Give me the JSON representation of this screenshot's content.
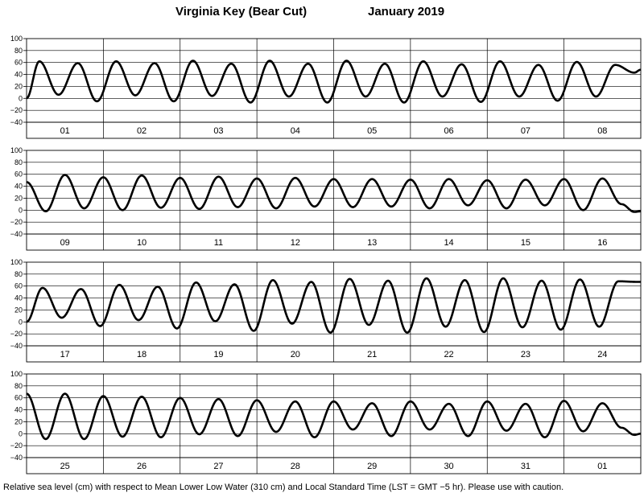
{
  "header": {
    "station": "Virginia Key (Bear Cut)",
    "month": "January   2019"
  },
  "footnote": "Relative sea level (cm) with respect to Mean Lower Low Water (310 cm) and Local Standard Time (LST = GMT −5 hr). Please use with caution.",
  "chart_data": {
    "type": "line",
    "y_axis": {
      "range": [
        -40,
        100
      ],
      "ticks": [
        "100",
        "80",
        "60",
        "40",
        "20",
        "0",
        "−20",
        "−40"
      ],
      "unit": "cm"
    },
    "grid": true,
    "tide_period_hours": 12.42,
    "panels": [
      {
        "days": [
          "01",
          "02",
          "03",
          "04",
          "05",
          "06",
          "07",
          "08"
        ],
        "x_range_hours": [
          0,
          192
        ],
        "points": [
          [
            0,
            0
          ],
          [
            4,
            62
          ],
          [
            10,
            6
          ],
          [
            16,
            59
          ],
          [
            22,
            -5
          ],
          [
            28,
            62
          ],
          [
            34,
            5
          ],
          [
            40,
            59
          ],
          [
            46,
            -5
          ],
          [
            52,
            63
          ],
          [
            58,
            4
          ],
          [
            64,
            58
          ],
          [
            70,
            -7
          ],
          [
            76,
            63
          ],
          [
            82,
            3
          ],
          [
            88,
            58
          ],
          [
            94,
            -7
          ],
          [
            100,
            63
          ],
          [
            106,
            3
          ],
          [
            112,
            58
          ],
          [
            118,
            -7
          ],
          [
            124,
            62
          ],
          [
            130,
            3
          ],
          [
            136,
            57
          ],
          [
            142,
            -6
          ],
          [
            148,
            62
          ],
          [
            154,
            3
          ],
          [
            160,
            56
          ],
          [
            166,
            -4
          ],
          [
            172,
            61
          ],
          [
            178,
            3
          ],
          [
            184,
            56
          ],
          [
            190,
            43
          ],
          [
            192,
            48
          ]
        ]
      },
      {
        "days": [
          "09",
          "10",
          "11",
          "12",
          "13",
          "14",
          "15",
          "16"
        ],
        "x_range_hours": [
          0,
          192
        ],
        "points": [
          [
            0,
            47
          ],
          [
            6,
            -2
          ],
          [
            12,
            59
          ],
          [
            18,
            3
          ],
          [
            24,
            55
          ],
          [
            30,
            0
          ],
          [
            36,
            58
          ],
          [
            42,
            4
          ],
          [
            48,
            54
          ],
          [
            54,
            2
          ],
          [
            60,
            56
          ],
          [
            66,
            5
          ],
          [
            72,
            53
          ],
          [
            78,
            3
          ],
          [
            84,
            54
          ],
          [
            90,
            6
          ],
          [
            96,
            52
          ],
          [
            102,
            5
          ],
          [
            108,
            52
          ],
          [
            114,
            6
          ],
          [
            120,
            51
          ],
          [
            126,
            3
          ],
          [
            132,
            52
          ],
          [
            138,
            8
          ],
          [
            144,
            50
          ],
          [
            150,
            3
          ],
          [
            156,
            51
          ],
          [
            162,
            8
          ],
          [
            168,
            52
          ],
          [
            174,
            0
          ],
          [
            180,
            53
          ],
          [
            186,
            10
          ],
          [
            190,
            -3
          ],
          [
            192,
            -2
          ]
        ]
      },
      {
        "days": [
          "17",
          "18",
          "19",
          "20",
          "21",
          "22",
          "23",
          "24"
        ],
        "x_range_hours": [
          0,
          192
        ],
        "points": [
          [
            0,
            0
          ],
          [
            5,
            57
          ],
          [
            11,
            7
          ],
          [
            17,
            55
          ],
          [
            23,
            -7
          ],
          [
            29,
            62
          ],
          [
            35,
            3
          ],
          [
            41,
            59
          ],
          [
            47,
            -11
          ],
          [
            53,
            66
          ],
          [
            59,
            1
          ],
          [
            65,
            63
          ],
          [
            71,
            -15
          ],
          [
            77,
            70
          ],
          [
            83,
            -3
          ],
          [
            89,
            67
          ],
          [
            95,
            -18
          ],
          [
            101,
            72
          ],
          [
            107,
            -5
          ],
          [
            113,
            69
          ],
          [
            119,
            -18
          ],
          [
            125,
            73
          ],
          [
            131,
            -8
          ],
          [
            137,
            70
          ],
          [
            143,
            -17
          ],
          [
            149,
            73
          ],
          [
            155,
            -9
          ],
          [
            161,
            69
          ],
          [
            167,
            -13
          ],
          [
            173,
            71
          ],
          [
            179,
            -8
          ],
          [
            185,
            68
          ],
          [
            191,
            67
          ],
          [
            192,
            67
          ]
        ]
      },
      {
        "days": [
          "25",
          "26",
          "27",
          "28",
          "29",
          "30",
          "31",
          "01"
        ],
        "x_range_hours": [
          0,
          192
        ],
        "points": [
          [
            0,
            67
          ],
          [
            6,
            -9
          ],
          [
            12,
            67
          ],
          [
            18,
            -9
          ],
          [
            24,
            63
          ],
          [
            30,
            -5
          ],
          [
            36,
            62
          ],
          [
            42,
            -6
          ],
          [
            48,
            60
          ],
          [
            54,
            -1
          ],
          [
            60,
            58
          ],
          [
            66,
            -4
          ],
          [
            72,
            56
          ],
          [
            78,
            3
          ],
          [
            84,
            54
          ],
          [
            90,
            -6
          ],
          [
            96,
            54
          ],
          [
            102,
            7
          ],
          [
            108,
            51
          ],
          [
            114,
            -4
          ],
          [
            120,
            54
          ],
          [
            126,
            7
          ],
          [
            132,
            50
          ],
          [
            138,
            -4
          ],
          [
            144,
            54
          ],
          [
            150,
            5
          ],
          [
            156,
            50
          ],
          [
            162,
            -6
          ],
          [
            168,
            55
          ],
          [
            174,
            4
          ],
          [
            180,
            51
          ],
          [
            186,
            10
          ],
          [
            190,
            -2
          ],
          [
            192,
            0
          ]
        ]
      }
    ]
  }
}
